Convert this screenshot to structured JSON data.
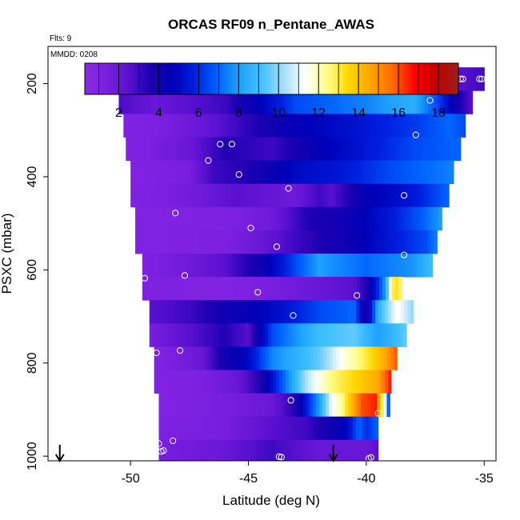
{
  "chart_data": {
    "type": "heatmap",
    "title": "ORCAS RF09 n_Pentane_AWAS",
    "flights_label": "Flts: 9",
    "date_label": "MMDD: 0208",
    "xlabel": "Latitude (deg N)",
    "ylabel": "PSXC (mbar)",
    "xlim": [
      -53.5,
      -34.5
    ],
    "ylim": [
      1010,
      120
    ],
    "x_ticks": [
      "-50",
      "-45",
      "-40",
      "-35"
    ],
    "y_ticks": [
      "200",
      "400",
      "600",
      "800",
      "1000"
    ],
    "colorbar": {
      "range": [
        0.3,
        19
      ],
      "ticks": [
        "2",
        "4",
        "6",
        "8",
        "10",
        "12",
        "14",
        "16",
        "18"
      ],
      "colors": [
        "#8a2be2",
        "#7b1fe0",
        "#5a10d0",
        "#1a00b0",
        "#0000b8",
        "#0020e0",
        "#0060ff",
        "#1ea0ff",
        "#40c0ff",
        "#a0dcff",
        "#ffffff",
        "#ffff90",
        "#ffd700",
        "#ffa500",
        "#ff6a00",
        "#ff0000",
        "#c00000",
        "#9b2020"
      ]
    },
    "bands": [
      {
        "p": 190,
        "x0": -38.0,
        "x1": -35.0,
        "stops": [
          [
            -38.0,
            3.0
          ],
          [
            -37.2,
            3.5
          ],
          [
            -36.8,
            6.0
          ],
          [
            -36.5,
            3.5
          ],
          [
            -36.0,
            2.5
          ],
          [
            -35.0,
            3.0
          ]
        ]
      },
      {
        "p": 240,
        "x0": -50.5,
        "x1": -35.5,
        "stops": [
          [
            -50.5,
            2.8
          ],
          [
            -49.0,
            2.0
          ],
          [
            -46.0,
            3.0
          ],
          [
            -43.0,
            6.5
          ],
          [
            -40.0,
            7.5
          ],
          [
            -38.0,
            8.5
          ],
          [
            -37.0,
            6.5
          ],
          [
            -36.0,
            3.5
          ],
          [
            -35.5,
            2.5
          ]
        ]
      },
      {
        "p": 290,
        "x0": -50.3,
        "x1": -35.8,
        "stops": [
          [
            -50.3,
            1.0
          ],
          [
            -48.5,
            1.5
          ],
          [
            -47.0,
            2.0
          ],
          [
            -45.5,
            3.0
          ],
          [
            -43.0,
            4.5
          ],
          [
            -40.0,
            5.5
          ],
          [
            -38.0,
            6.2
          ],
          [
            -36.5,
            7.0
          ],
          [
            -35.8,
            6.5
          ]
        ]
      },
      {
        "p": 340,
        "x0": -50.2,
        "x1": -36.0,
        "stops": [
          [
            -50.2,
            1.0
          ],
          [
            -47.5,
            2.0
          ],
          [
            -46.0,
            3.5
          ],
          [
            -44.0,
            3.0
          ],
          [
            -42.0,
            4.5
          ],
          [
            -40.0,
            5.5
          ],
          [
            -38.0,
            6.5
          ],
          [
            -36.0,
            7.0
          ]
        ]
      },
      {
        "p": 390,
        "x0": -50.0,
        "x1": -36.3,
        "stops": [
          [
            -50.0,
            1.0
          ],
          [
            -47.5,
            1.5
          ],
          [
            -46.5,
            3.0
          ],
          [
            -45.0,
            3.5
          ],
          [
            -43.0,
            5.0
          ],
          [
            -41.0,
            5.5
          ],
          [
            -39.0,
            6.5
          ],
          [
            -37.0,
            7.2
          ],
          [
            -36.3,
            7.5
          ]
        ]
      },
      {
        "p": 440,
        "x0": -50.0,
        "x1": -36.5,
        "stops": [
          [
            -50.0,
            1.0
          ],
          [
            -47.0,
            1.8
          ],
          [
            -45.5,
            2.5
          ],
          [
            -43.0,
            1.8
          ],
          [
            -42.0,
            3.0
          ],
          [
            -41.5,
            2.5
          ],
          [
            -40.0,
            4.5
          ],
          [
            -38.0,
            5.5
          ],
          [
            -36.5,
            7.0
          ]
        ]
      },
      {
        "p": 490,
        "x0": -49.8,
        "x1": -36.8,
        "stops": [
          [
            -49.8,
            1.0
          ],
          [
            -46.0,
            1.2
          ],
          [
            -44.0,
            1.8
          ],
          [
            -42.5,
            3.5
          ],
          [
            -41.0,
            4.0
          ],
          [
            -39.0,
            5.5
          ],
          [
            -37.5,
            7.0
          ],
          [
            -36.8,
            8.0
          ]
        ]
      },
      {
        "p": 540,
        "x0": -49.8,
        "x1": -37.0,
        "stops": [
          [
            -49.8,
            1.0
          ],
          [
            -46.0,
            1.3
          ],
          [
            -44.5,
            2.0
          ],
          [
            -43.0,
            3.0
          ],
          [
            -41.0,
            4.0
          ],
          [
            -39.0,
            5.5
          ],
          [
            -37.5,
            6.5
          ],
          [
            -37.0,
            7.5
          ]
        ]
      },
      {
        "p": 590,
        "x0": -49.5,
        "x1": -37.2,
        "stops": [
          [
            -49.5,
            1.2
          ],
          [
            -47.5,
            1.8
          ],
          [
            -46.0,
            2.5
          ],
          [
            -44.5,
            4.0
          ],
          [
            -43.0,
            6.5
          ],
          [
            -42.0,
            8.0
          ],
          [
            -40.0,
            7.0
          ],
          [
            -38.0,
            7.8
          ],
          [
            -37.2,
            9.0
          ]
        ]
      },
      {
        "p": 640,
        "x0": -49.5,
        "x1": -38.5,
        "stops": [
          [
            -49.5,
            1.2
          ],
          [
            -46.0,
            1.0
          ],
          [
            -44.0,
            1.5
          ],
          [
            -42.0,
            2.0
          ],
          [
            -40.5,
            2.5
          ],
          [
            -40.0,
            3.5
          ],
          [
            -39.5,
            6.0
          ],
          [
            -39.2,
            8.0
          ],
          [
            -38.8,
            13.5
          ],
          [
            -38.5,
            12.5
          ]
        ]
      },
      {
        "p": 690,
        "x0": -49.2,
        "x1": -38.0,
        "stops": [
          [
            -49.2,
            2.5
          ],
          [
            -47.5,
            3.0
          ],
          [
            -46.0,
            4.0
          ],
          [
            -44.0,
            5.0
          ],
          [
            -42.0,
            6.5
          ],
          [
            -40.5,
            7.0
          ],
          [
            -40.0,
            3.5
          ],
          [
            -39.5,
            8.5
          ],
          [
            -38.7,
            11.5
          ],
          [
            -38.0,
            10.0
          ]
        ]
      },
      {
        "p": 740,
        "x0": -49.2,
        "x1": -38.3,
        "stops": [
          [
            -49.2,
            1.5
          ],
          [
            -47.5,
            2.5
          ],
          [
            -46.0,
            3.5
          ],
          [
            -45.0,
            2.5
          ],
          [
            -44.0,
            6.5
          ],
          [
            -42.0,
            9.0
          ],
          [
            -40.5,
            9.5
          ],
          [
            -39.5,
            8.0
          ],
          [
            -38.3,
            9.5
          ]
        ]
      },
      {
        "p": 790,
        "x0": -49.0,
        "x1": -38.7,
        "stops": [
          [
            -49.0,
            1.0
          ],
          [
            -47.0,
            2.0
          ],
          [
            -46.0,
            4.0
          ],
          [
            -45.0,
            5.0
          ],
          [
            -44.0,
            7.5
          ],
          [
            -42.0,
            9.5
          ],
          [
            -41.0,
            11.5
          ],
          [
            -40.0,
            13.0
          ],
          [
            -39.2,
            14.5
          ],
          [
            -38.7,
            16.0
          ]
        ]
      },
      {
        "p": 840,
        "x0": -49.0,
        "x1": -38.8,
        "stops": [
          [
            -49.0,
            1.0
          ],
          [
            -47.0,
            1.3
          ],
          [
            -45.5,
            2.0
          ],
          [
            -44.5,
            3.5
          ],
          [
            -43.5,
            7.0
          ],
          [
            -42.5,
            10.5
          ],
          [
            -41.5,
            12.5
          ],
          [
            -40.5,
            13.5
          ],
          [
            -39.5,
            14.5
          ],
          [
            -39.0,
            16.5
          ],
          [
            -38.8,
            8.0
          ]
        ]
      },
      {
        "p": 890,
        "x0": -48.8,
        "x1": -39.0,
        "stops": [
          [
            -48.8,
            1.0
          ],
          [
            -46.0,
            1.5
          ],
          [
            -44.0,
            2.0
          ],
          [
            -43.0,
            3.5
          ],
          [
            -42.0,
            8.0
          ],
          [
            -41.5,
            11.0
          ],
          [
            -41.0,
            12.5
          ],
          [
            -40.2,
            16.0
          ],
          [
            -39.6,
            16.5
          ],
          [
            -39.2,
            11.0
          ],
          [
            -39.0,
            5.0
          ]
        ]
      },
      {
        "p": 940,
        "x0": -48.8,
        "x1": -39.5,
        "stops": [
          [
            -48.8,
            1.2
          ],
          [
            -46.0,
            1.5
          ],
          [
            -44.0,
            2.5
          ],
          [
            -42.5,
            3.0
          ],
          [
            -41.5,
            4.0
          ],
          [
            -40.8,
            5.0
          ],
          [
            -40.3,
            7.0
          ],
          [
            -40.0,
            6.0
          ],
          [
            -39.5,
            7.0
          ]
        ]
      },
      {
        "p": 990,
        "x0": -48.8,
        "x1": -39.5,
        "stops": [
          [
            -48.8,
            1.5
          ],
          [
            -46.0,
            2.0
          ],
          [
            -44.0,
            3.0
          ],
          [
            -42.0,
            2.0
          ],
          [
            -40.0,
            2.0
          ],
          [
            -39.5,
            2.5
          ]
        ]
      }
    ],
    "points": [
      [
        -50.5,
        215
      ],
      [
        -46.2,
        330
      ],
      [
        -45.7,
        330
      ],
      [
        -46.7,
        365
      ],
      [
        -45.4,
        395
      ],
      [
        -43.3,
        425
      ],
      [
        -48.1,
        478
      ],
      [
        -44.9,
        510
      ],
      [
        -43.8,
        550
      ],
      [
        -49.4,
        618
      ],
      [
        -47.7,
        612
      ],
      [
        -44.6,
        648
      ],
      [
        -40.4,
        655
      ],
      [
        -43.1,
        698
      ],
      [
        -48.9,
        778
      ],
      [
        -47.9,
        773
      ],
      [
        -43.2,
        880
      ],
      [
        -39.5,
        908
      ],
      [
        -48.8,
        973
      ],
      [
        -48.6,
        988
      ],
      [
        -48.7,
        990
      ],
      [
        -48.2,
        967
      ],
      [
        -43.7,
        1001
      ],
      [
        -43.6,
        1002
      ],
      [
        -39.8,
        1003
      ],
      [
        -39.9,
        1005
      ],
      [
        -38.4,
        440
      ],
      [
        -37.9,
        310
      ],
      [
        -38.4,
        568
      ],
      [
        -38.5,
        190
      ],
      [
        -38.2,
        190
      ],
      [
        -37.5,
        190
      ],
      [
        -36.9,
        200
      ],
      [
        -36.4,
        190
      ],
      [
        -36.0,
        190
      ],
      [
        -35.9,
        190
      ],
      [
        -35.2,
        190
      ],
      [
        -35.1,
        190
      ],
      [
        -37.3,
        236
      ]
    ],
    "flight_arrows_x": [
      -53.0,
      -41.4
    ]
  }
}
